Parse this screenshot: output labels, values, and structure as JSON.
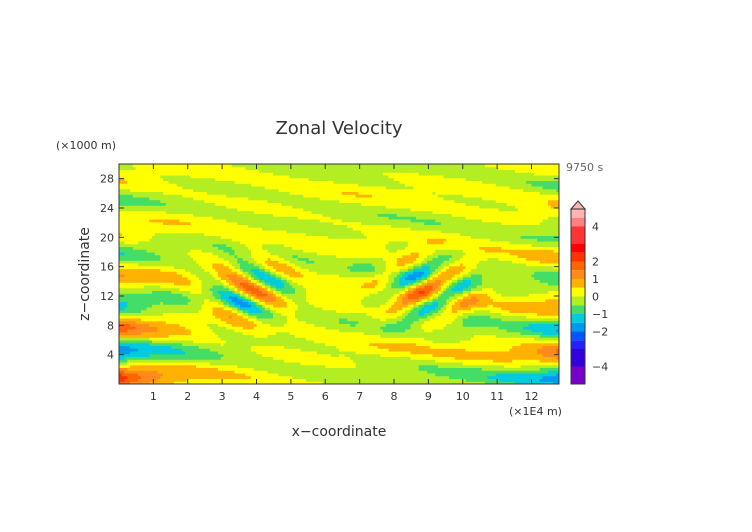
{
  "chart_data": {
    "type": "heatmap",
    "title": "Zonal Velocity",
    "xlabel": "x−coordinate",
    "ylabel": "z−coordinate",
    "x_unit": "(×1E4 m)",
    "y_unit": "(×1000 m)",
    "time_label": "9750 s",
    "xlim": [
      0,
      12.8
    ],
    "ylim": [
      0,
      30
    ],
    "x_ticks": [
      "1",
      "2",
      "3",
      "4",
      "5",
      "6",
      "7",
      "8",
      "9",
      "10",
      "11",
      "12"
    ],
    "y_ticks": [
      "4",
      "8",
      "12",
      "16",
      "20",
      "24",
      "28"
    ],
    "colorbar": {
      "range": [
        -5,
        5
      ],
      "tick_labels": [
        "4",
        "2",
        "1",
        "0",
        "−1",
        "−2",
        "−4"
      ],
      "tick_values": [
        4,
        2,
        1,
        0,
        -1,
        -2,
        -4
      ],
      "extend": "max",
      "levels": [
        {
          "from": 4.5,
          "to": 5,
          "color": "#ffb3b3"
        },
        {
          "from": 4,
          "to": 4.5,
          "color": "#ff8080"
        },
        {
          "from": 3,
          "to": 4,
          "color": "#ff3333"
        },
        {
          "from": 2.5,
          "to": 3,
          "color": "#ff0000"
        },
        {
          "from": 2,
          "to": 2.5,
          "color": "#ff3300"
        },
        {
          "from": 1.5,
          "to": 2,
          "color": "#ff6600"
        },
        {
          "from": 1,
          "to": 1.5,
          "color": "#ff8c1a"
        },
        {
          "from": 0.5,
          "to": 1,
          "color": "#ffb300"
        },
        {
          "from": 0,
          "to": 0.5,
          "color": "#ffff00"
        },
        {
          "from": -0.5,
          "to": 0,
          "color": "#b2ee22"
        },
        {
          "from": -1,
          "to": -0.5,
          "color": "#44dd66"
        },
        {
          "from": -1.5,
          "to": -1,
          "color": "#00ccdd"
        },
        {
          "from": -2,
          "to": -1.5,
          "color": "#0099ee"
        },
        {
          "from": -2.5,
          "to": -2,
          "color": "#0055ff"
        },
        {
          "from": -3,
          "to": -2.5,
          "color": "#2222ff"
        },
        {
          "from": -4,
          "to": -3,
          "color": "#3300dd"
        },
        {
          "from": -5,
          "to": -4,
          "color": "#7700cc"
        }
      ]
    }
  }
}
